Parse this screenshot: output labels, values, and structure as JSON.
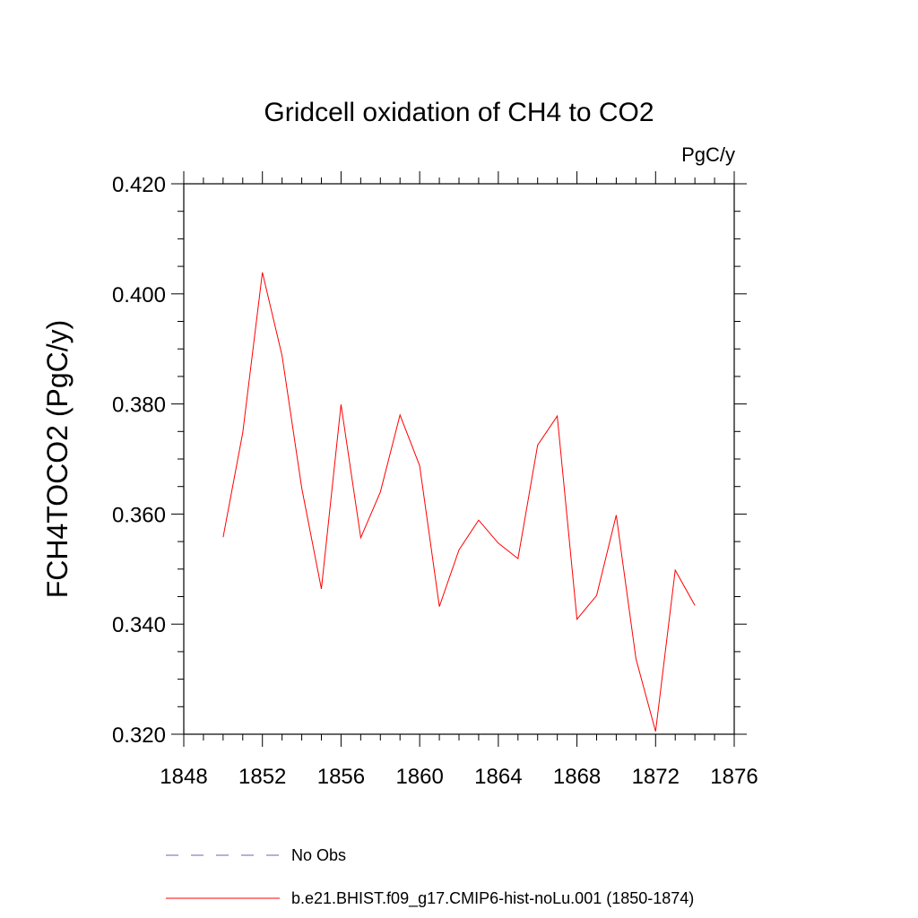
{
  "chart_data": {
    "type": "line",
    "title": "Gridcell oxidation of CH4 to CO2",
    "units_label": "PgC/y",
    "xlabel": "",
    "ylabel": "FCH4TOCO2  (PgC/y)",
    "xlim": [
      1848,
      1876
    ],
    "ylim": [
      0.32,
      0.42
    ],
    "xticks": [
      1848,
      1852,
      1856,
      1860,
      1864,
      1868,
      1872,
      1876
    ],
    "xtick_labels": [
      "1848",
      "1852",
      "1856",
      "1860",
      "1864",
      "1868",
      "1872",
      "1876"
    ],
    "yticks": [
      0.32,
      0.34,
      0.36,
      0.38,
      0.4,
      0.42
    ],
    "ytick_labels": [
      "0.320",
      "0.340",
      "0.360",
      "0.380",
      "0.400",
      "0.420"
    ],
    "grid": false,
    "legend_position": "bottom",
    "series": [
      {
        "name": "b.e21.BHIST.f09_g17.CMIP6-hist-noLu.001 (1850-1874)",
        "color": "#ff0000",
        "style": "solid",
        "x": [
          1850,
          1851,
          1852,
          1853,
          1854,
          1855,
          1856,
          1857,
          1858,
          1859,
          1860,
          1861,
          1862,
          1863,
          1864,
          1865,
          1866,
          1867,
          1868,
          1869,
          1870,
          1871,
          1872,
          1873,
          1874
        ],
        "values": [
          0.3558,
          0.3748,
          0.4039,
          0.3888,
          0.3647,
          0.3464,
          0.3799,
          0.3557,
          0.364,
          0.378,
          0.3688,
          0.3432,
          0.3535,
          0.3589,
          0.3547,
          0.3519,
          0.3725,
          0.3778,
          0.3409,
          0.3452,
          0.3598,
          0.3337,
          0.3205,
          0.3498,
          0.3434
        ]
      }
    ],
    "legend": [
      {
        "label": "No Obs",
        "color": "#6666bb",
        "style": "dashed"
      },
      {
        "label": "b.e21.BHIST.f09_g17.CMIP6-hist-noLu.001 (1850-1874)",
        "color": "#ff0000",
        "style": "solid"
      }
    ]
  }
}
